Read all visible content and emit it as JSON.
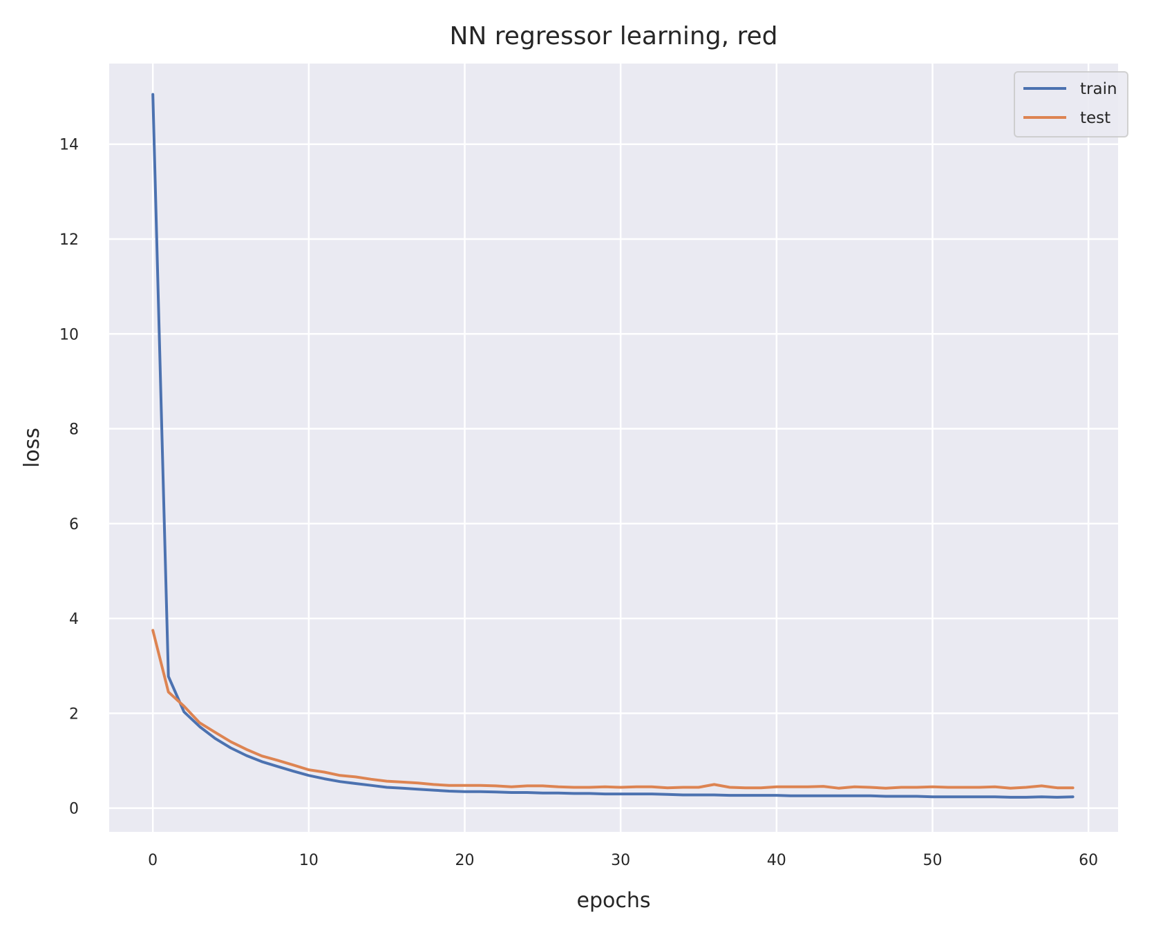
{
  "chart_data": {
    "type": "line",
    "title": "NN regressor learning, red",
    "xlabel": "epochs",
    "ylabel": "loss",
    "xlim": [
      -2.8,
      61.9
    ],
    "ylim": [
      -0.5,
      15.7
    ],
    "xticks": [
      0,
      10,
      20,
      30,
      40,
      50,
      60
    ],
    "yticks": [
      0,
      2,
      4,
      6,
      8,
      10,
      12,
      14
    ],
    "grid": true,
    "legend": "top-right",
    "series": [
      {
        "name": "train",
        "color": "#4c72b0",
        "x": [
          0,
          1,
          2,
          3,
          4,
          5,
          6,
          7,
          8,
          9,
          10,
          11,
          12,
          13,
          14,
          15,
          16,
          17,
          18,
          19,
          20,
          21,
          22,
          23,
          24,
          25,
          26,
          27,
          28,
          29,
          30,
          31,
          32,
          33,
          34,
          35,
          36,
          37,
          38,
          39,
          40,
          41,
          42,
          43,
          44,
          45,
          46,
          47,
          48,
          49,
          50,
          51,
          52,
          53,
          54,
          55,
          56,
          57,
          58,
          59
        ],
        "values": [
          15.05,
          2.78,
          2.03,
          1.72,
          1.47,
          1.27,
          1.11,
          0.98,
          0.88,
          0.78,
          0.69,
          0.62,
          0.56,
          0.52,
          0.48,
          0.44,
          0.42,
          0.4,
          0.38,
          0.36,
          0.35,
          0.35,
          0.34,
          0.33,
          0.33,
          0.32,
          0.32,
          0.31,
          0.31,
          0.3,
          0.3,
          0.3,
          0.3,
          0.29,
          0.28,
          0.28,
          0.28,
          0.27,
          0.27,
          0.27,
          0.27,
          0.26,
          0.26,
          0.26,
          0.26,
          0.26,
          0.26,
          0.25,
          0.25,
          0.25,
          0.24,
          0.24,
          0.24,
          0.24,
          0.24,
          0.23,
          0.23,
          0.24,
          0.23,
          0.24
        ]
      },
      {
        "name": "test",
        "color": "#dd8452",
        "x": [
          0,
          1,
          2,
          3,
          4,
          5,
          6,
          7,
          8,
          9,
          10,
          11,
          12,
          13,
          14,
          15,
          16,
          17,
          18,
          19,
          20,
          21,
          22,
          23,
          24,
          25,
          26,
          27,
          28,
          29,
          30,
          31,
          32,
          33,
          34,
          35,
          36,
          37,
          38,
          39,
          40,
          41,
          42,
          43,
          44,
          45,
          46,
          47,
          48,
          49,
          50,
          51,
          52,
          53,
          54,
          55,
          56,
          57,
          58,
          59
        ],
        "values": [
          3.75,
          2.45,
          2.15,
          1.8,
          1.6,
          1.4,
          1.24,
          1.1,
          1.01,
          0.91,
          0.81,
          0.76,
          0.69,
          0.66,
          0.61,
          0.57,
          0.55,
          0.53,
          0.5,
          0.48,
          0.48,
          0.48,
          0.47,
          0.45,
          0.47,
          0.47,
          0.45,
          0.44,
          0.44,
          0.45,
          0.44,
          0.45,
          0.45,
          0.43,
          0.44,
          0.44,
          0.5,
          0.44,
          0.43,
          0.43,
          0.45,
          0.45,
          0.45,
          0.46,
          0.42,
          0.45,
          0.44,
          0.42,
          0.44,
          0.44,
          0.45,
          0.44,
          0.44,
          0.44,
          0.45,
          0.42,
          0.44,
          0.47,
          0.43,
          0.43
        ]
      }
    ]
  }
}
